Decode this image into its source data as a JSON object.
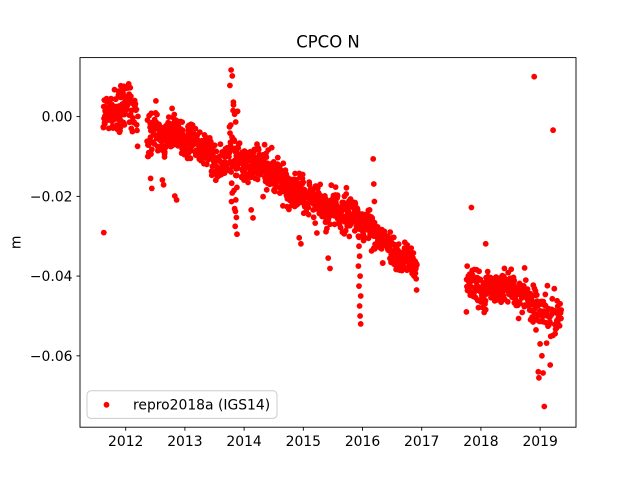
{
  "figure": {
    "kind": "matplotlib-figure",
    "background": "#ffffff"
  },
  "chart_data": {
    "type": "scatter",
    "title": "CPCO N",
    "xlabel": "",
    "ylabel": "m",
    "grid": false,
    "xlim": [
      2011.228,
      2019.606
    ],
    "ylim": [
      -0.0779,
      0.0148
    ],
    "xticks": {
      "values": [
        2012,
        2013,
        2014,
        2015,
        2016,
        2017,
        2018,
        2019
      ],
      "labels": [
        "2012",
        "2013",
        "2014",
        "2015",
        "2016",
        "2017",
        "2018",
        "2019"
      ]
    },
    "yticks": {
      "values": [
        0.0,
        -0.02,
        -0.04,
        -0.06
      ],
      "labels": [
        "0.00",
        "−0.02",
        "−0.04",
        "−0.06"
      ]
    },
    "legend": {
      "position": "lower left",
      "entries": [
        {
          "label": "repro2018a (IGS14)",
          "color": "#ff0000",
          "marker": "circle"
        }
      ]
    },
    "marker": {
      "color": "#ff0000",
      "radius_px": 2.9
    },
    "axis_color": "#000000",
    "legend_frame_color": "#cccccc",
    "seed": 1234567,
    "trend_segments": [
      {
        "t_start": 2011.62,
        "t_end": 2012.07,
        "v_start": 0.0008,
        "v_end": 0.0028,
        "sd": 0.0026,
        "n": 115
      },
      {
        "t_start": 2012.07,
        "t_end": 2012.21,
        "v_start": 0.0025,
        "v_end": -0.0005,
        "sd": 0.0027,
        "n": 20
      },
      {
        "t_start": 2012.36,
        "t_end": 2012.55,
        "v_start": -0.005,
        "v_end": -0.0045,
        "sd": 0.0034,
        "n": 40
      },
      {
        "t_start": 2012.55,
        "t_end": 2013.1,
        "v_start": -0.004,
        "v_end": -0.006,
        "sd": 0.0021,
        "n": 170
      },
      {
        "t_start": 2013.1,
        "t_end": 2013.45,
        "v_start": -0.006,
        "v_end": -0.009,
        "sd": 0.0021,
        "n": 110
      },
      {
        "t_start": 2013.45,
        "t_end": 2013.72,
        "v_start": -0.0105,
        "v_end": -0.0125,
        "sd": 0.0024,
        "n": 55
      },
      {
        "t_start": 2013.74,
        "t_end": 2013.9,
        "v_start": -0.0055,
        "v_end": -0.008,
        "sd": 0.0058,
        "n": 42
      },
      {
        "t_start": 2013.9,
        "t_end": 2014.45,
        "v_start": -0.011,
        "v_end": -0.0135,
        "sd": 0.0021,
        "n": 150
      },
      {
        "t_start": 2014.45,
        "t_end": 2015.0,
        "v_start": -0.0145,
        "v_end": -0.0205,
        "sd": 0.0021,
        "n": 150
      },
      {
        "t_start": 2015.0,
        "t_end": 2015.55,
        "v_start": -0.0205,
        "v_end": -0.023,
        "sd": 0.0021,
        "n": 140
      },
      {
        "t_start": 2015.55,
        "t_end": 2016.0,
        "v_start": -0.023,
        "v_end": -0.0265,
        "sd": 0.0021,
        "n": 120
      },
      {
        "t_start": 2016.0,
        "t_end": 2016.35,
        "v_start": -0.027,
        "v_end": -0.0315,
        "sd": 0.0019,
        "n": 95
      },
      {
        "t_start": 2016.35,
        "t_end": 2016.92,
        "v_start": -0.0315,
        "v_end": -0.0385,
        "sd": 0.0019,
        "n": 150
      },
      {
        "t_start": 2017.75,
        "t_end": 2018.1,
        "v_start": -0.0425,
        "v_end": -0.0422,
        "sd": 0.0028,
        "n": 65
      },
      {
        "t_start": 2018.1,
        "t_end": 2018.6,
        "v_start": -0.042,
        "v_end": -0.0445,
        "sd": 0.002,
        "n": 120
      },
      {
        "t_start": 2018.6,
        "t_end": 2019.1,
        "v_start": -0.0445,
        "v_end": -0.049,
        "sd": 0.0023,
        "n": 85
      },
      {
        "t_start": 2019.1,
        "t_end": 2019.36,
        "v_start": -0.049,
        "v_end": -0.0505,
        "sd": 0.0028,
        "n": 38
      }
    ],
    "outlier_points": [
      [
        2011.63,
        -0.0291
      ],
      [
        2012.42,
        -0.0155
      ],
      [
        2012.44,
        -0.018
      ],
      [
        2012.62,
        -0.0159
      ],
      [
        2012.64,
        -0.0171
      ],
      [
        2012.83,
        -0.0199
      ],
      [
        2012.86,
        -0.0209
      ],
      [
        2013.78,
        0.0117
      ],
      [
        2013.8,
        0.0102
      ],
      [
        2013.76,
        0.0078
      ],
      [
        2013.82,
        0.0029
      ],
      [
        2013.84,
        0.0006
      ],
      [
        2013.79,
        -0.0167
      ],
      [
        2013.83,
        -0.0185
      ],
      [
        2013.86,
        -0.0209
      ],
      [
        2013.84,
        -0.0231
      ],
      [
        2013.87,
        -0.0253
      ],
      [
        2013.85,
        -0.0275
      ],
      [
        2013.88,
        -0.0295
      ],
      [
        2014.12,
        -0.0234
      ],
      [
        2014.15,
        -0.0254
      ],
      [
        2014.32,
        -0.0201
      ],
      [
        2014.93,
        -0.0304
      ],
      [
        2014.96,
        -0.0319
      ],
      [
        2015.2,
        -0.0267
      ],
      [
        2015.23,
        -0.0292
      ],
      [
        2015.42,
        -0.0355
      ],
      [
        2015.45,
        -0.0381
      ],
      [
        2015.93,
        -0.03
      ],
      [
        2015.94,
        -0.0325
      ],
      [
        2015.95,
        -0.035
      ],
      [
        2015.93,
        -0.0375
      ],
      [
        2015.96,
        -0.04
      ],
      [
        2015.94,
        -0.0425
      ],
      [
        2015.97,
        -0.045
      ],
      [
        2015.95,
        -0.0475
      ],
      [
        2015.96,
        -0.05
      ],
      [
        2015.97,
        -0.052
      ],
      [
        2016.18,
        -0.0106
      ],
      [
        2016.19,
        -0.0169
      ],
      [
        2016.2,
        -0.0213
      ],
      [
        2017.84,
        -0.0228
      ],
      [
        2018.08,
        -0.0319
      ],
      [
        2018.9,
        0.01
      ],
      [
        2019.22,
        -0.0034
      ],
      [
        2018.93,
        -0.0535
      ],
      [
        2019.0,
        -0.057
      ],
      [
        2019.11,
        -0.0568
      ],
      [
        2019.03,
        -0.06
      ],
      [
        2019.17,
        -0.0623
      ],
      [
        2018.97,
        -0.064
      ],
      [
        2018.98,
        -0.0655
      ],
      [
        2019.05,
        -0.0643
      ],
      [
        2019.07,
        -0.0727
      ]
    ]
  }
}
